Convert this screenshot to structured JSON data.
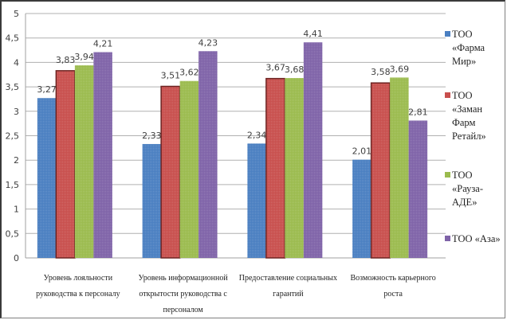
{
  "chart_data": {
    "type": "bar",
    "title": "",
    "xlabel": "",
    "ylabel": "",
    "ylim": [
      0,
      5
    ],
    "yticks": [
      "0",
      "0,5",
      "1",
      "1,5",
      "2",
      "2,5",
      "3",
      "3,5",
      "4",
      "4,5",
      "5"
    ],
    "ytick_values": [
      0,
      0.5,
      1,
      1.5,
      2,
      2.5,
      3,
      3.5,
      4,
      4.5,
      5
    ],
    "grid": true,
    "legend_position": "right",
    "categories": [
      "Уровень лояльности руководства к персоналу",
      "Уровень информационной открытости руководства с персоналом",
      "Предоставление социальных гарантий",
      "Возможность карьерного роста"
    ],
    "category_lines": [
      [
        "Уровень лояльности",
        "руководства к персоналу"
      ],
      [
        "Уровень информационной",
        "открытости руководства с",
        "персоналом"
      ],
      [
        "Предоставление социальных",
        "гарантий"
      ],
      [
        "Возможность карьерного",
        "роста"
      ]
    ],
    "series": [
      {
        "name": "ТОО «Фарма Мир»",
        "legend_lines": [
          "ТОО",
          "«Фарма",
          "Мир»"
        ],
        "color": "#4a7fc1",
        "values": [
          3.27,
          2.33,
          2.34,
          2.01
        ],
        "labels": [
          "3,27",
          "2,33",
          "2,34",
          "2,01"
        ]
      },
      {
        "name": "ТОО «Заман Фарм Ретайл»",
        "legend_lines": [
          "ТОО",
          "«Заман",
          "Фарм",
          "Ретайл»"
        ],
        "color": "#c84f4d",
        "values": [
          3.83,
          3.51,
          3.67,
          3.58
        ],
        "labels": [
          "3,83",
          "3,51",
          "3,67",
          "3,58"
        ]
      },
      {
        "name": "ТОО «Рауза-АДЕ»",
        "legend_lines": [
          "ТОО",
          "«Рауза-",
          "АДЕ»"
        ],
        "color": "#9bbb4e",
        "values": [
          3.94,
          3.62,
          3.68,
          3.69
        ],
        "labels": [
          "3,94",
          "3,62",
          "3,68",
          "3,69"
        ]
      },
      {
        "name": "ТОО «Аза»",
        "legend_lines": [
          "ТОО «Аза»"
        ],
        "color": "#7f63a8",
        "values": [
          4.21,
          4.23,
          4.41,
          2.81
        ],
        "labels": [
          "4,21",
          "4,23",
          "4,41",
          "2,81"
        ]
      }
    ]
  }
}
